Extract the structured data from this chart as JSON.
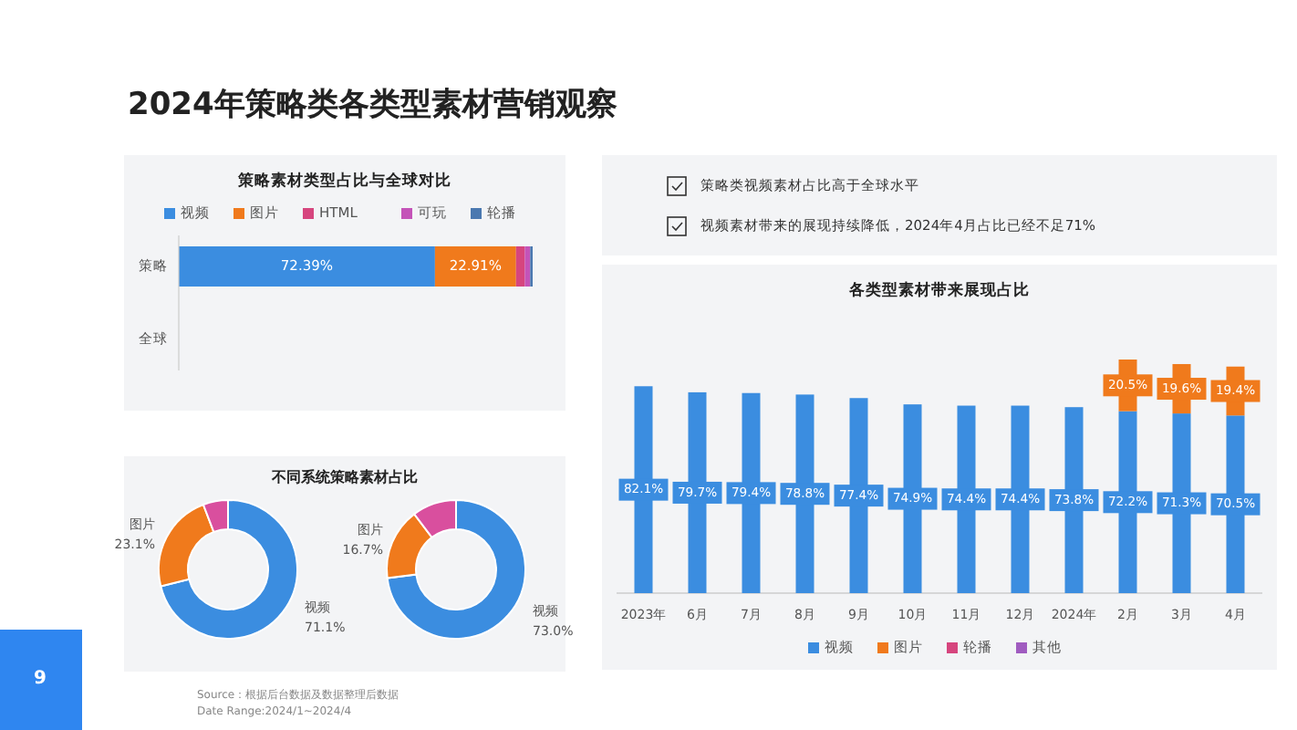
{
  "chart_data": [
    {
      "type": "other",
      "title": "2024年策略类各类型素材营销观察",
      "annotations": [
        "策略类视频素材占比高于全球水平",
        "视频素材带来的展现持续降低，2024年4月占比已经不足71%",
        "Source：根据后台数据及数据整理后数据",
        "Date Range:2024/1~2024/4",
        "9"
      ]
    },
    {
      "type": "bar",
      "orientation": "horizontal",
      "stacked": true,
      "title": "策略素材类型占比与全球对比",
      "categories": [
        "策略",
        "全球"
      ],
      "legend": "top",
      "series": [
        {
          "name": "视频",
          "color": "#3b8de0",
          "values": [
            72.39,
            null
          ],
          "value_labels": [
            "72.39%",
            null
          ]
        },
        {
          "name": "图片",
          "color": "#f07a1c",
          "values": [
            22.91,
            null
          ],
          "value_labels": [
            "22.91%",
            null
          ]
        },
        {
          "name": "HTML",
          "color": "#d6457e",
          "values": [
            2.5,
            null
          ]
        },
        {
          "name": "可玩",
          "color": "#c453b8",
          "values": [
            1.5,
            null
          ]
        },
        {
          "name": "轮播",
          "color": "#4a78b0",
          "values": [
            0.7,
            null
          ]
        }
      ]
    },
    {
      "type": "donut",
      "title": "不同系统策略素材占比",
      "categories": [
        "视频",
        "图片",
        null
      ],
      "values": [
        71.1,
        23.1,
        5.8
      ],
      "value_labels": [
        "71.1%",
        "23.1%",
        null
      ],
      "colors": [
        "#3b8de0",
        "#f07a1c",
        "#d94f9e"
      ]
    },
    {
      "type": "donut",
      "categories": [
        "视频",
        "图片",
        null
      ],
      "values": [
        73.0,
        16.7,
        10.3
      ],
      "value_labels": [
        "73.0%",
        "16.7%",
        null
      ],
      "colors": [
        "#3b8de0",
        "#f07a1c",
        "#d94f9e"
      ]
    },
    {
      "type": "bar",
      "stacked": true,
      "title": "各类型素材带来展现占比",
      "categories": [
        "2023年",
        "6月",
        "7月",
        "8月",
        "9月",
        "10月",
        "11月",
        "12月",
        "2024年",
        "2月",
        "3月",
        "4月"
      ],
      "legend": "bottom",
      "series": [
        {
          "name": "视频",
          "color": "#3b8de0",
          "values": [
            82.1,
            79.7,
            79.4,
            78.8,
            77.4,
            74.9,
            74.4,
            74.4,
            73.8,
            72.2,
            71.3,
            70.5
          ],
          "value_labels": [
            "82.1%",
            "79.7%",
            "79.4%",
            "78.8%",
            "77.4%",
            "74.9%",
            "74.4%",
            "74.4%",
            "73.8%",
            "72.2%",
            "71.3%",
            "70.5%"
          ]
        },
        {
          "name": "图片",
          "color": "#f07a1c",
          "values": [
            null,
            null,
            null,
            null,
            null,
            null,
            null,
            null,
            null,
            20.5,
            19.6,
            19.4
          ],
          "value_labels": [
            null,
            null,
            null,
            null,
            null,
            null,
            null,
            null,
            null,
            "20.5%",
            "19.6%",
            "19.4%"
          ]
        },
        {
          "name": "轮播",
          "color": "#d6457e",
          "values": [
            null,
            null,
            null,
            null,
            null,
            null,
            null,
            null,
            null,
            null,
            null,
            null
          ]
        },
        {
          "name": "其他",
          "color": "#a05cc0",
          "values": [
            null,
            null,
            null,
            null,
            null,
            null,
            null,
            null,
            null,
            null,
            null,
            null
          ]
        }
      ]
    }
  ]
}
